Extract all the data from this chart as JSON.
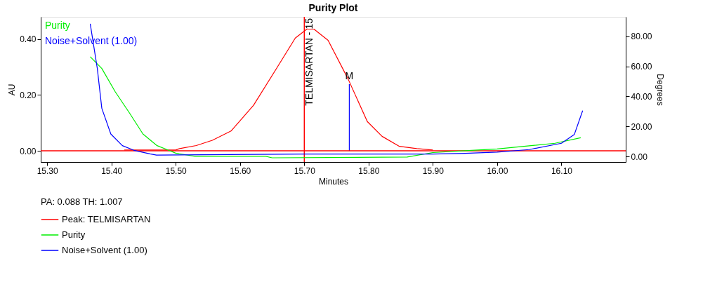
{
  "chart_data": {
    "type": "line",
    "title": "Purity Plot",
    "xlabel": "Minutes",
    "ylabel": "AU",
    "y2label": "Degrees",
    "legend_title": "PA: 0.088  TH: 1.007",
    "legend": "bottom",
    "grid": false,
    "marker": "none",
    "xlim": [
      15.29,
      16.2
    ],
    "xticks": [
      {
        "value": 15.3,
        "label": "15.30"
      },
      {
        "value": 15.4,
        "label": "15.40"
      },
      {
        "value": 15.5,
        "label": "15.50"
      },
      {
        "value": 15.6,
        "label": "15.60"
      },
      {
        "value": 15.7,
        "label": "15.70"
      },
      {
        "value": 15.8,
        "label": "15.80"
      },
      {
        "value": 15.9,
        "label": "15.90"
      },
      {
        "value": 16.0,
        "label": "16.00"
      },
      {
        "value": 16.1,
        "label": "16.10"
      }
    ],
    "ylim": [
      -0.04,
      0.48
    ],
    "yticks": [
      {
        "value": 0,
        "label": "0.00"
      },
      {
        "value": 0.2,
        "label": "0.20"
      },
      {
        "value": 0.4,
        "label": "0.40"
      }
    ],
    "y2lim": [
      -3.7,
      93
    ],
    "y2ticks": [
      {
        "value": 0,
        "label": "0.00"
      },
      {
        "value": 20,
        "label": "20.00"
      },
      {
        "value": 40,
        "label": "40.00"
      },
      {
        "value": 60,
        "label": "60.00"
      },
      {
        "value": 80,
        "label": "80.00"
      }
    ],
    "series": [
      {
        "name": "Peak: TELMISARTAN",
        "color": "#ff0000",
        "x": [
          15.42,
          15.5,
          15.506,
          15.532,
          15.557,
          15.586,
          15.621,
          15.657,
          15.686,
          15.704,
          15.715,
          15.737,
          15.768,
          15.798,
          15.821,
          15.848,
          15.875,
          15.9
        ],
        "values": [
          0.003,
          0.003,
          0.008,
          0.019,
          0.038,
          0.071,
          0.163,
          0.296,
          0.404,
          0.436,
          0.436,
          0.396,
          0.258,
          0.105,
          0.052,
          0.016,
          0.008,
          0.003
        ]
      },
      {
        "name": "Purity",
        "color": "#00ee00",
        "axis": "y2",
        "x": [
          15.367,
          15.385,
          15.406,
          15.428,
          15.449,
          15.471,
          15.489,
          15.5,
          15.53,
          15.64,
          15.65,
          15.86,
          15.9,
          15.95,
          16.0,
          16.05,
          16.09,
          16.13
        ],
        "values": [
          66.4,
          58.6,
          43.0,
          29.0,
          15.0,
          7.2,
          4.1,
          2.2,
          0.1,
          0.1,
          -0.9,
          -0.4,
          2.6,
          3.8,
          5.0,
          7.1,
          8.8,
          12.5
        ]
      },
      {
        "name": "Noise+Solvent (1.00)",
        "color": "#0000ff",
        "axis": "y2",
        "x": [
          15.367,
          15.378,
          15.385,
          15.399,
          15.417,
          15.435,
          15.46,
          15.47,
          15.7,
          15.9,
          15.95,
          16.0,
          16.05,
          16.1,
          16.12,
          16.133
        ],
        "values": [
          88.4,
          58.6,
          32.1,
          15.0,
          7.2,
          4.1,
          1.7,
          0.9,
          1.6,
          1.6,
          2.1,
          2.9,
          4.6,
          8.8,
          14.6,
          30.5
        ]
      },
      {
        "color": "#0000ff",
        "x": [
          15.77,
          15.77
        ],
        "values": [
          0,
          0.239
        ]
      }
    ],
    "ref_lines": [
      {
        "axis": "y",
        "value": 0,
        "color": "#ff0000"
      },
      {
        "axis": "x",
        "value": 15.7,
        "label": "TELMISARTAN - 15",
        "color": "#ff0000"
      }
    ],
    "annotations": [
      {
        "text": "M",
        "x": 15.77,
        "y": 0.25
      }
    ]
  }
}
